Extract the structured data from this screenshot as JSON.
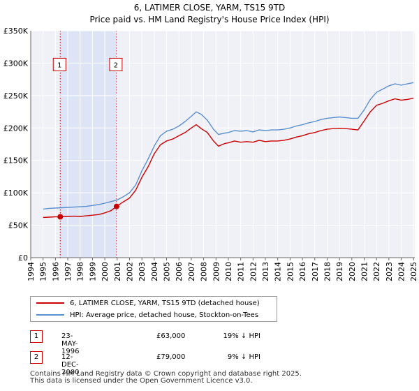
{
  "title_line1": "6, LATIMER CLOSE, YARM, TS15 9TD",
  "title_line2": "Price paid vs. HM Land Registry's House Price Index (HPI)",
  "chart_data": {
    "type": "line",
    "title": "6, LATIMER CLOSE, YARM, TS15 9TD — Price paid vs. HM Land Registry's House Price Index (HPI)",
    "xlabel": "",
    "ylabel": "",
    "xlim": [
      1994.0,
      2025.1
    ],
    "ylim": [
      0,
      350000
    ],
    "grid": true,
    "y_ticks": [
      0,
      50000,
      100000,
      150000,
      200000,
      250000,
      300000,
      350000
    ],
    "y_tick_labels": [
      "£0",
      "£50K",
      "£100K",
      "£150K",
      "£200K",
      "£250K",
      "£300K",
      "£350K"
    ],
    "x_ticks": [
      1994,
      1995,
      1996,
      1997,
      1998,
      1999,
      2000,
      2001,
      2002,
      2003,
      2004,
      2005,
      2006,
      2007,
      2008,
      2009,
      2010,
      2011,
      2012,
      2013,
      2014,
      2015,
      2016,
      2017,
      2018,
      2019,
      2020,
      2021,
      2022,
      2023,
      2024,
      2025
    ],
    "x_tick_labels": [
      "1994",
      "1995",
      "1996",
      "1997",
      "1998",
      "1999",
      "2000",
      "2001",
      "2002",
      "2003",
      "2004",
      "2005",
      "2006",
      "2007",
      "2008",
      "2009",
      "2010",
      "2011",
      "2012",
      "2013",
      "2014",
      "2015",
      "2016",
      "2017",
      "2018",
      "2019",
      "2020",
      "2021",
      "2022",
      "2023",
      "2024",
      "2025"
    ],
    "shaded_period": [
      1996.39,
      2000.95
    ],
    "series": [
      {
        "name": "6, LATIMER CLOSE, YARM, TS15 9TD (detached house)",
        "color": "#cc0000",
        "x": [
          1995.0,
          1995.5,
          1996.0,
          1996.39,
          1997.0,
          1997.5,
          1998.0,
          1998.5,
          1999.0,
          1999.5,
          2000.0,
          2000.5,
          2000.95,
          2001.5,
          2002.0,
          2002.5,
          2003.0,
          2003.5,
          2004.0,
          2004.5,
          2005.0,
          2005.5,
          2006.0,
          2006.5,
          2007.0,
          2007.4,
          2007.8,
          2008.3,
          2008.8,
          2009.2,
          2009.7,
          2010.0,
          2010.5,
          2011.0,
          2011.5,
          2012.0,
          2012.5,
          2013.0,
          2013.5,
          2014.0,
          2014.5,
          2015.0,
          2015.5,
          2016.0,
          2016.5,
          2017.0,
          2017.5,
          2018.0,
          2018.5,
          2019.0,
          2019.5,
          2020.0,
          2020.5,
          2021.0,
          2021.5,
          2022.0,
          2022.5,
          2023.0,
          2023.5,
          2024.0,
          2024.5,
          2025.0
        ],
        "values": [
          62000,
          62500,
          63000,
          63000,
          63500,
          64000,
          63500,
          64500,
          65500,
          66500,
          69000,
          72500,
          79000,
          86000,
          92000,
          104000,
          124000,
          140000,
          160000,
          174000,
          180000,
          183000,
          188000,
          193000,
          200000,
          205000,
          199000,
          193000,
          180000,
          172000,
          176000,
          177000,
          180000,
          178000,
          179000,
          178000,
          181000,
          179000,
          180000,
          180000,
          181000,
          183000,
          186000,
          188000,
          191000,
          193000,
          196000,
          198000,
          199000,
          199500,
          199000,
          198000,
          197000,
          211000,
          225000,
          235000,
          238000,
          242000,
          245000,
          243000,
          244000,
          246000
        ]
      },
      {
        "name": "HPI: Average price, detached house, Stockton-on-Tees",
        "color": "#5a8fd0",
        "x": [
          1995.0,
          1995.5,
          1996.0,
          1996.5,
          1997.0,
          1997.5,
          1998.0,
          1998.5,
          1999.0,
          1999.5,
          2000.0,
          2000.5,
          2001.0,
          2001.5,
          2002.0,
          2002.5,
          2003.0,
          2003.5,
          2004.0,
          2004.5,
          2005.0,
          2005.5,
          2006.0,
          2006.5,
          2007.0,
          2007.4,
          2007.8,
          2008.3,
          2008.8,
          2009.2,
          2009.7,
          2010.0,
          2010.5,
          2011.0,
          2011.5,
          2012.0,
          2012.5,
          2013.0,
          2013.5,
          2014.0,
          2014.5,
          2015.0,
          2015.5,
          2016.0,
          2016.5,
          2017.0,
          2017.5,
          2018.0,
          2018.5,
          2019.0,
          2019.5,
          2020.0,
          2020.5,
          2021.0,
          2021.5,
          2022.0,
          2022.5,
          2023.0,
          2023.5,
          2024.0,
          2024.5,
          2025.0
        ],
        "values": [
          75000,
          76000,
          76500,
          77000,
          77500,
          78000,
          78500,
          79000,
          80500,
          82000,
          84000,
          86500,
          89000,
          94000,
          100000,
          112000,
          134000,
          152000,
          172000,
          188000,
          195000,
          198000,
          203000,
          210000,
          218000,
          225000,
          221000,
          212000,
          198000,
          190000,
          192000,
          193000,
          196000,
          195000,
          196000,
          194000,
          197000,
          196000,
          197000,
          197000,
          198000,
          200000,
          203000,
          205000,
          208000,
          210000,
          213000,
          215000,
          216000,
          217000,
          216000,
          215000,
          215000,
          228000,
          244000,
          255000,
          260000,
          265000,
          268000,
          266000,
          268000,
          270000
        ]
      }
    ],
    "points": [
      {
        "label": "1",
        "x": 1996.39,
        "value": 63000
      },
      {
        "label": "2",
        "x": 2000.95,
        "value": 79000
      }
    ]
  },
  "legend": {
    "property_label": "6, LATIMER CLOSE, YARM, TS15 9TD (detached house)",
    "hpi_label": "HPI: Average price, detached house, Stockton-on-Tees"
  },
  "transactions": [
    {
      "num": "1",
      "date": "23-MAY-1996",
      "price": "£63,000",
      "hpi": "19% ↓ HPI"
    },
    {
      "num": "2",
      "date": "12-DEC-2000",
      "price": "£79,000",
      "hpi": "9% ↓ HPI"
    }
  ],
  "footer_line1": "Contains HM Land Registry data © Crown copyright and database right 2025.",
  "footer_line2": "This data is licensed under the Open Government Licence v3.0."
}
